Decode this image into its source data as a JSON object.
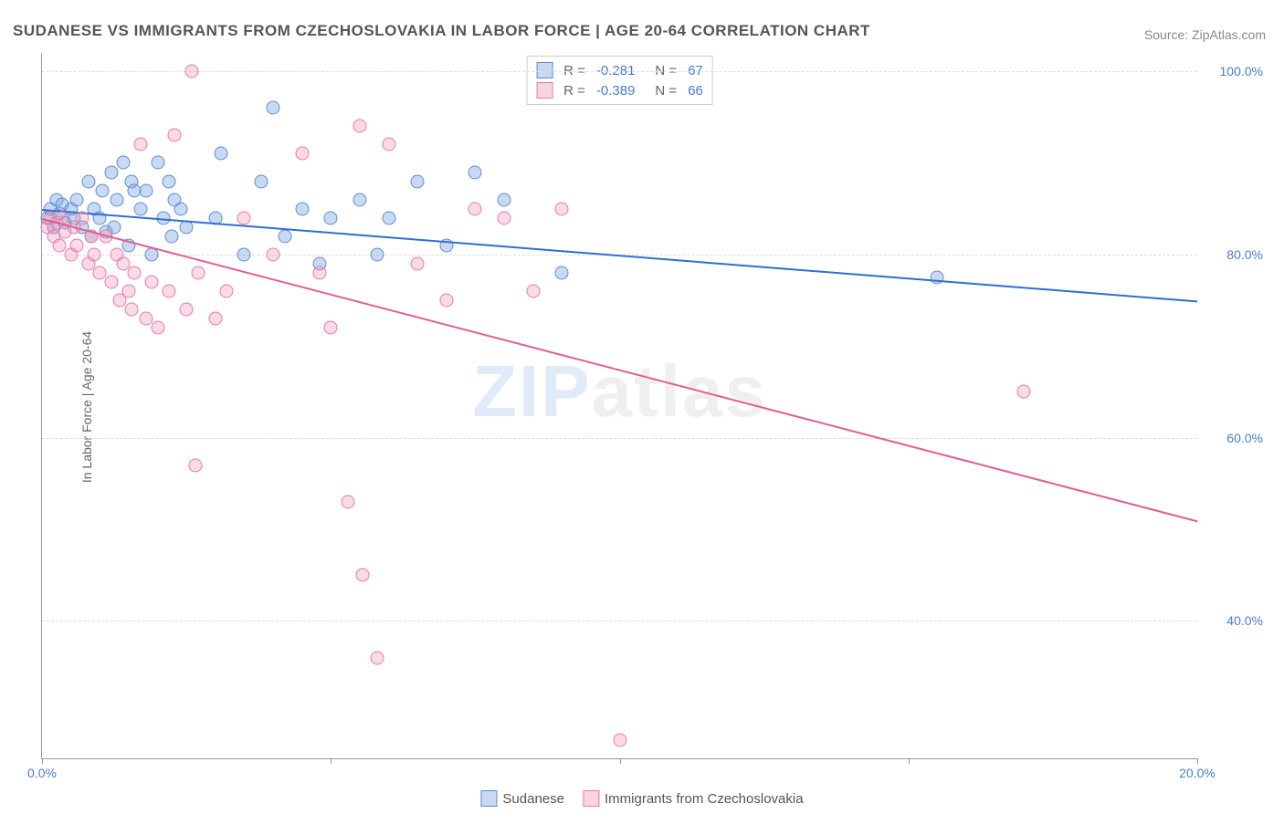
{
  "title": "SUDANESE VS IMMIGRANTS FROM CZECHOSLOVAKIA IN LABOR FORCE | AGE 20-64 CORRELATION CHART",
  "source": "Source: ZipAtlas.com",
  "ylabel": "In Labor Force | Age 20-64",
  "watermark_z": "ZIP",
  "watermark_rest": "atlas",
  "chart": {
    "type": "scatter",
    "background_color": "#ffffff",
    "grid_color": "#dddddd",
    "axis_color": "#999999",
    "label_color": "#4a7bd0",
    "xlim": [
      0,
      20
    ],
    "ylim": [
      25,
      102
    ],
    "xticks": [
      {
        "pos": 0,
        "label": "0.0%"
      },
      {
        "pos": 5,
        "label": ""
      },
      {
        "pos": 10,
        "label": ""
      },
      {
        "pos": 15,
        "label": ""
      },
      {
        "pos": 20,
        "label": "20.0%"
      }
    ],
    "yticks": [
      {
        "pos": 40,
        "label": "40.0%"
      },
      {
        "pos": 60,
        "label": "60.0%"
      },
      {
        "pos": 80,
        "label": "80.0%"
      },
      {
        "pos": 100,
        "label": "100.0%"
      }
    ],
    "series": [
      {
        "name": "Sudanese",
        "color_fill": "rgba(120,160,220,0.4)",
        "color_stroke": "#5c8fd6",
        "marker_size": 15,
        "R": "-0.281",
        "N": "67",
        "trend": {
          "x1": 0,
          "y1": 85,
          "x2": 20,
          "y2": 75,
          "color": "#2f6fd0",
          "width": 2
        },
        "points": [
          [
            0.1,
            84
          ],
          [
            0.15,
            85
          ],
          [
            0.2,
            83
          ],
          [
            0.25,
            86
          ],
          [
            0.3,
            84.5
          ],
          [
            0.35,
            85.5
          ],
          [
            0.4,
            83.5
          ],
          [
            0.5,
            85
          ],
          [
            0.55,
            84
          ],
          [
            0.6,
            86
          ],
          [
            0.7,
            83
          ],
          [
            0.8,
            88
          ],
          [
            0.85,
            82
          ],
          [
            0.9,
            85
          ],
          [
            1.0,
            84
          ],
          [
            1.05,
            87
          ],
          [
            1.1,
            82.5
          ],
          [
            1.2,
            89
          ],
          [
            1.25,
            83
          ],
          [
            1.3,
            86
          ],
          [
            1.4,
            90
          ],
          [
            1.5,
            81
          ],
          [
            1.55,
            88
          ],
          [
            1.6,
            87
          ],
          [
            1.7,
            85
          ],
          [
            1.8,
            87
          ],
          [
            1.9,
            80
          ],
          [
            2.0,
            90
          ],
          [
            2.1,
            84
          ],
          [
            2.2,
            88
          ],
          [
            2.25,
            82
          ],
          [
            2.3,
            86
          ],
          [
            2.4,
            85
          ],
          [
            2.5,
            83
          ],
          [
            3.0,
            84
          ],
          [
            3.1,
            91
          ],
          [
            3.5,
            80
          ],
          [
            3.8,
            88
          ],
          [
            4.0,
            96
          ],
          [
            4.2,
            82
          ],
          [
            4.5,
            85
          ],
          [
            4.8,
            79
          ],
          [
            5.0,
            84
          ],
          [
            5.5,
            86
          ],
          [
            5.8,
            80
          ],
          [
            6.0,
            84
          ],
          [
            6.5,
            88
          ],
          [
            7.0,
            81
          ],
          [
            7.5,
            89
          ],
          [
            8.0,
            86
          ],
          [
            9.0,
            78
          ],
          [
            15.5,
            77.5
          ]
        ]
      },
      {
        "name": "Immigrants from Czechoslovakia",
        "color_fill": "rgba(240,150,180,0.35)",
        "color_stroke": "#e87ba5",
        "marker_size": 15,
        "R": "-0.389",
        "N": "66",
        "trend": {
          "x1": 0,
          "y1": 84,
          "x2": 20,
          "y2": 51,
          "color": "#e35d8f",
          "width": 2
        },
        "points": [
          [
            0.1,
            83
          ],
          [
            0.15,
            84
          ],
          [
            0.2,
            82
          ],
          [
            0.25,
            83.5
          ],
          [
            0.3,
            81
          ],
          [
            0.35,
            84
          ],
          [
            0.4,
            82.5
          ],
          [
            0.5,
            80
          ],
          [
            0.55,
            83
          ],
          [
            0.6,
            81
          ],
          [
            0.7,
            84
          ],
          [
            0.8,
            79
          ],
          [
            0.85,
            82
          ],
          [
            0.9,
            80
          ],
          [
            1.0,
            78
          ],
          [
            1.1,
            82
          ],
          [
            1.2,
            77
          ],
          [
            1.3,
            80
          ],
          [
            1.35,
            75
          ],
          [
            1.4,
            79
          ],
          [
            1.5,
            76
          ],
          [
            1.55,
            74
          ],
          [
            1.6,
            78
          ],
          [
            1.7,
            92
          ],
          [
            1.8,
            73
          ],
          [
            1.9,
            77
          ],
          [
            2.0,
            72
          ],
          [
            2.2,
            76
          ],
          [
            2.3,
            93
          ],
          [
            2.5,
            74
          ],
          [
            2.6,
            100
          ],
          [
            2.65,
            57
          ],
          [
            2.7,
            78
          ],
          [
            3.0,
            73
          ],
          [
            3.2,
            76
          ],
          [
            3.5,
            84
          ],
          [
            4.0,
            80
          ],
          [
            4.5,
            91
          ],
          [
            4.8,
            78
          ],
          [
            5.0,
            72
          ],
          [
            5.3,
            53
          ],
          [
            5.5,
            94
          ],
          [
            5.55,
            45
          ],
          [
            5.8,
            36
          ],
          [
            6.0,
            92
          ],
          [
            6.5,
            79
          ],
          [
            7.0,
            75
          ],
          [
            7.5,
            85
          ],
          [
            8.0,
            84
          ],
          [
            8.5,
            76
          ],
          [
            9.0,
            85
          ],
          [
            10.0,
            27
          ],
          [
            17.0,
            65
          ]
        ]
      }
    ],
    "legend_top": {
      "R_label": "R  =",
      "N_label": "N  ="
    },
    "legend_bottom": [
      {
        "swatch": "blue",
        "label": "Sudanese"
      },
      {
        "swatch": "pink",
        "label": "Immigrants from Czechoslovakia"
      }
    ]
  }
}
